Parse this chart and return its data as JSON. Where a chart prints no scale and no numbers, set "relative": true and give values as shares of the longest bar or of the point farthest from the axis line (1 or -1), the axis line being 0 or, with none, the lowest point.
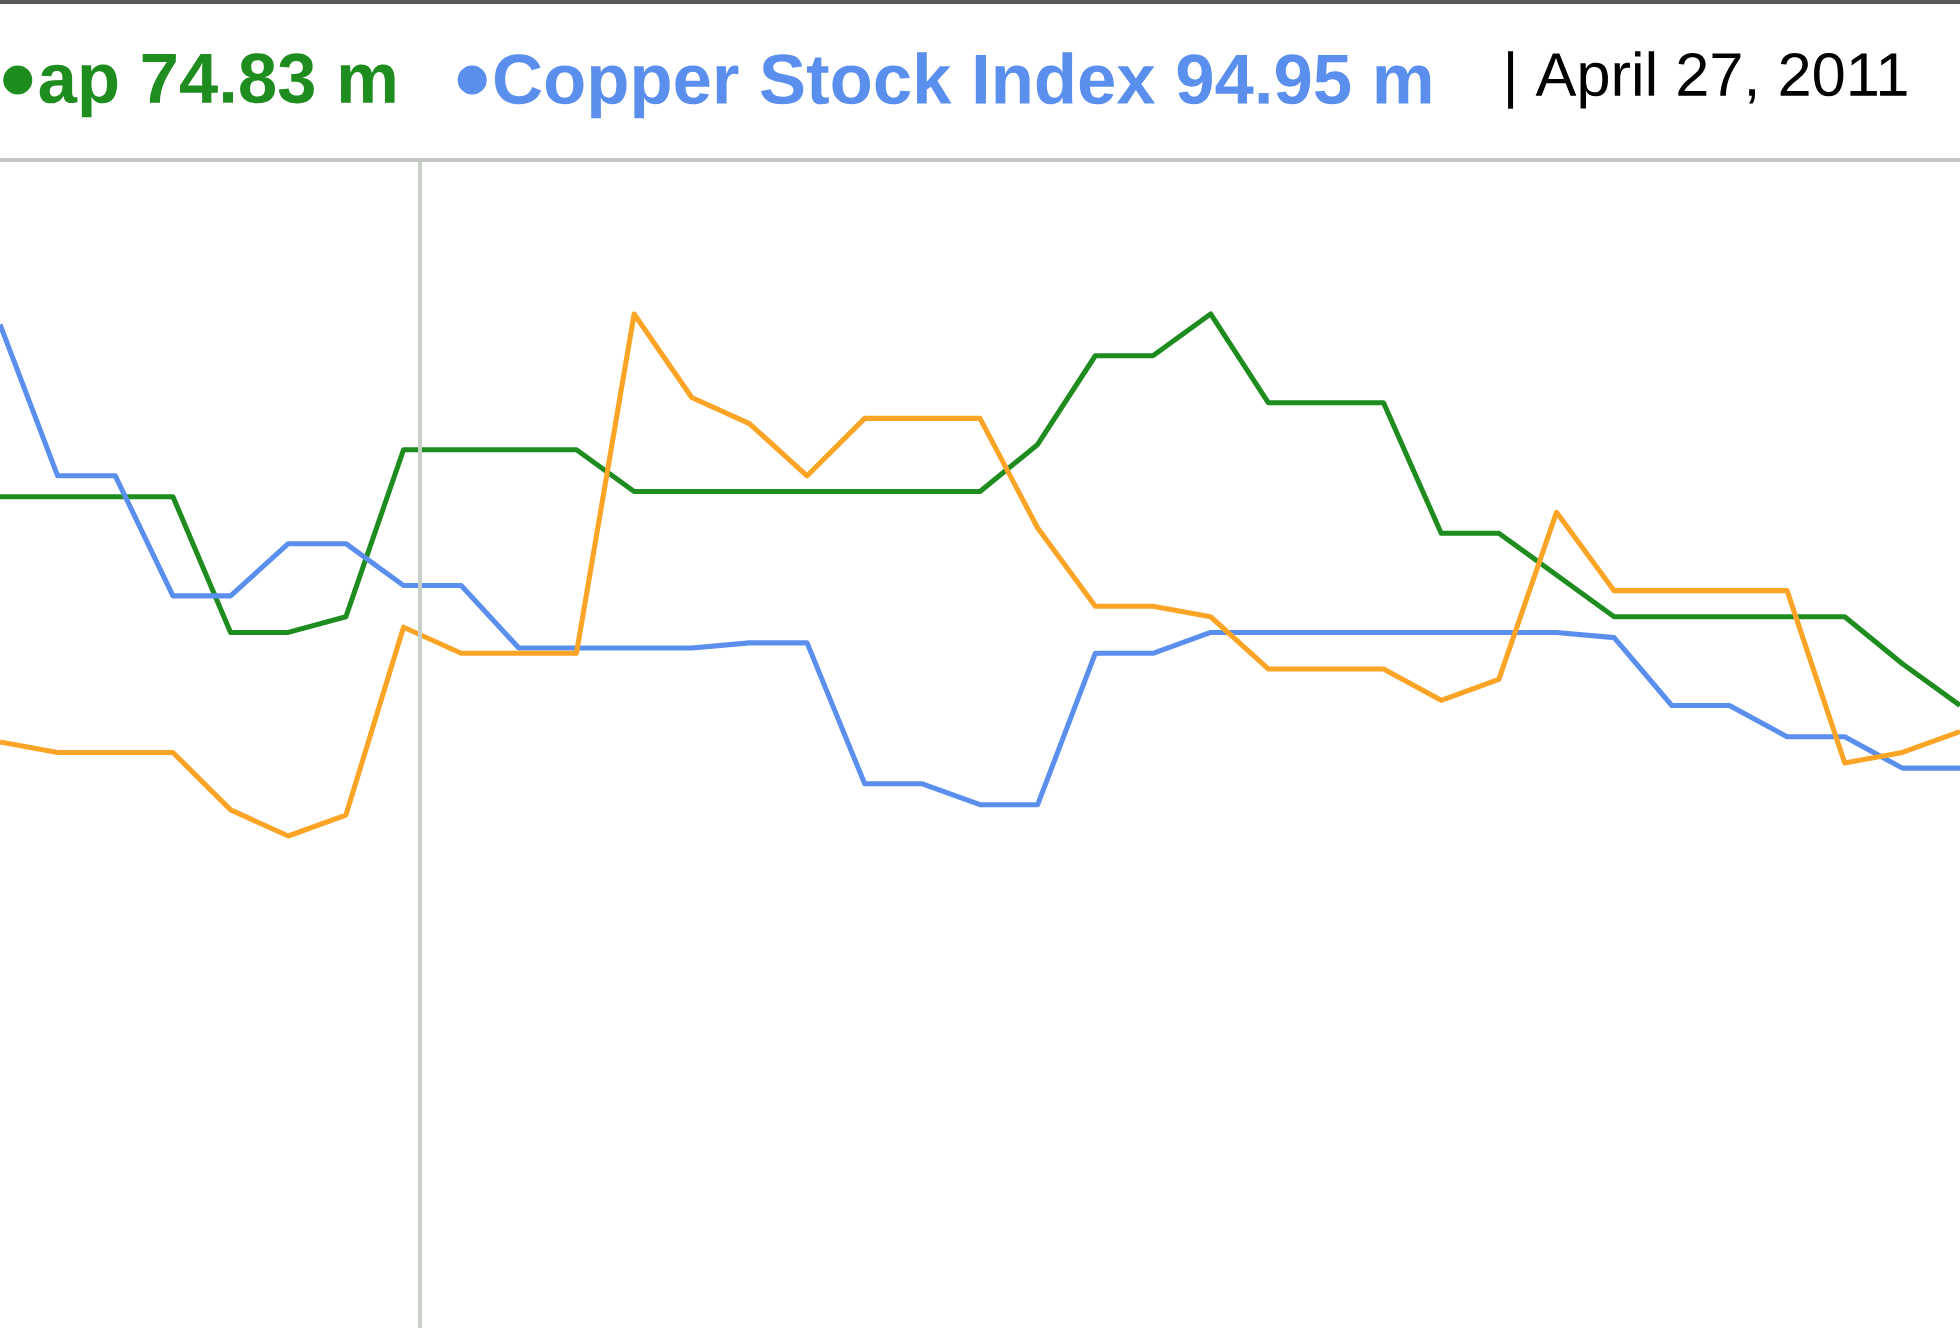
{
  "chart_data": {
    "type": "line",
    "relative": true,
    "categories": [
      null,
      null,
      null,
      null,
      null,
      null,
      null,
      null,
      null,
      null,
      null,
      null,
      null,
      null,
      null,
      null,
      null,
      null,
      null,
      null,
      null,
      null,
      null,
      null,
      null,
      null,
      null,
      null,
      null,
      null,
      null,
      null,
      null,
      null,
      null
    ],
    "series": [
      {
        "name": "ap 74.83 m",
        "color": "#1e8c1e",
        "values": [
          0.65,
          0.65,
          0.65,
          0.65,
          0.39,
          0.39,
          0.42,
          0.74,
          0.74,
          0.74,
          0.74,
          0.66,
          0.66,
          0.66,
          0.66,
          0.66,
          0.66,
          0.66,
          0.75,
          0.92,
          0.92,
          1,
          0.83,
          0.83,
          0.83,
          0.58,
          0.58,
          0.5,
          0.42,
          0.42,
          0.42,
          0.42,
          0.42,
          0.33,
          0.25
        ]
      },
      {
        "name": "Copper Stock Index 94.95 m",
        "color": "#5b8fee",
        "values": [
          0.98,
          0.69,
          0.69,
          0.46,
          0.46,
          0.56,
          0.56,
          0.48,
          0.48,
          0.36,
          0.36,
          0.36,
          0.36,
          0.37,
          0.37,
          0.1,
          0.1,
          0.06,
          0.06,
          0.35,
          0.35,
          0.39,
          0.39,
          0.39,
          0.39,
          0.39,
          0.39,
          0.39,
          0.38,
          0.25,
          0.25,
          0.19,
          0.19,
          0.13,
          0.13
        ]
      },
      {
        "color": "#fba425",
        "values": [
          0.18,
          0.16,
          0.16,
          0.16,
          0.05,
          0,
          0.04,
          0.4,
          0.35,
          0.35,
          0.35,
          1,
          0.84,
          0.79,
          0.69,
          0.8,
          0.8,
          0.8,
          0.59,
          0.44,
          0.44,
          0.42,
          0.32,
          0.32,
          0.32,
          0.26,
          0.3,
          0.62,
          0.47,
          0.47,
          0.47,
          0.47,
          0.14,
          0.16,
          0.2
        ]
      }
    ],
    "annotations": [
      "| April 27, 2011"
    ],
    "legend": "top"
  }
}
